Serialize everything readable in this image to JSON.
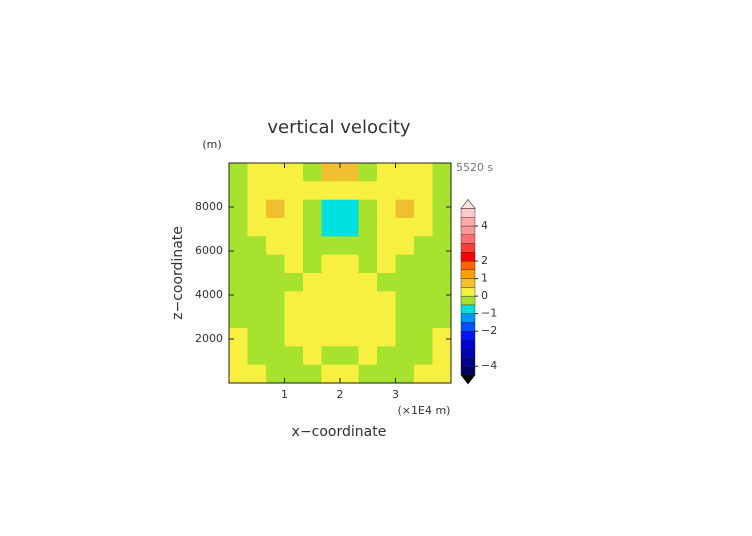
{
  "chart_data": {
    "type": "contour",
    "title": "vertical velocity",
    "yunit": "(m)",
    "time_label": "5520 s",
    "xunit": "(×1E4 m)",
    "xlabel": "x−coordinate",
    "ylabel": "z−coordinate",
    "xlim": [
      0,
      4
    ],
    "ylim": [
      0,
      10000
    ],
    "xticks": [
      1,
      2,
      3
    ],
    "yticks": [
      2000,
      4000,
      6000,
      8000
    ],
    "z": [
      [
        -0.2,
        0.2,
        0.2,
        0.2,
        -0.2,
        0.7,
        0.7,
        -0.2,
        0.2,
        0.2,
        0.2,
        -0.2
      ],
      [
        -0.2,
        0.2,
        0.2,
        0.2,
        0.2,
        0.2,
        0.2,
        0.2,
        0.2,
        0.2,
        0.2,
        -0.2
      ],
      [
        -0.2,
        0.2,
        0.7,
        0.2,
        -0.2,
        -0.7,
        -0.7,
        -0.2,
        0.2,
        0.7,
        0.2,
        -0.2
      ],
      [
        -0.2,
        0.2,
        0.2,
        0.2,
        -0.2,
        -0.7,
        -0.7,
        -0.2,
        0.2,
        0.2,
        0.2,
        -0.2
      ],
      [
        -0.2,
        -0.2,
        0.2,
        0.2,
        -0.2,
        -0.2,
        -0.2,
        -0.2,
        0.2,
        0.2,
        -0.2,
        -0.2
      ],
      [
        -0.2,
        -0.2,
        -0.2,
        0.2,
        -0.2,
        0.2,
        0.2,
        -0.2,
        0.2,
        -0.2,
        -0.2,
        -0.2
      ],
      [
        -0.2,
        -0.2,
        -0.2,
        -0.2,
        0.2,
        0.2,
        0.2,
        0.2,
        -0.2,
        -0.2,
        -0.2,
        -0.2
      ],
      [
        -0.2,
        -0.2,
        -0.2,
        0.2,
        0.2,
        0.2,
        0.2,
        0.2,
        0.2,
        -0.2,
        -0.2,
        -0.2
      ],
      [
        -0.2,
        -0.2,
        -0.2,
        0.2,
        0.2,
        0.2,
        0.2,
        0.2,
        0.2,
        -0.2,
        -0.2,
        -0.2
      ],
      [
        0.2,
        -0.2,
        -0.2,
        0.2,
        0.2,
        0.2,
        0.2,
        0.2,
        0.2,
        -0.2,
        -0.2,
        0.2
      ],
      [
        0.2,
        -0.2,
        -0.2,
        -0.2,
        0.2,
        -0.2,
        -0.2,
        0.2,
        -0.2,
        -0.2,
        -0.2,
        0.2
      ],
      [
        0.2,
        0.2,
        -0.2,
        -0.2,
        -0.2,
        0.2,
        0.2,
        -0.2,
        -0.2,
        -0.2,
        0.2,
        0.2
      ]
    ],
    "levels": [
      -4.5,
      -4,
      -3.5,
      -3,
      -2.5,
      -2,
      -1.5,
      -1,
      -0.5,
      0,
      0.5,
      1,
      1.5,
      2,
      2.5,
      3,
      3.5,
      4,
      4.5,
      5
    ],
    "colors": [
      "#000060",
      "#00008c",
      "#0000b4",
      "#0000dc",
      "#0014ff",
      "#0050ff",
      "#0096ff",
      "#00e0e0",
      "#a6e22e",
      "#f8f040",
      "#f0c030",
      "#ffa000",
      "#ff6400",
      "#ff0000",
      "#ff3c3c",
      "#ff6e6e",
      "#ff9696",
      "#ffaaaa",
      "#ffc8c8"
    ],
    "cticks": [
      {
        "value": -4,
        "label": "−4"
      },
      {
        "value": -2,
        "label": "−2"
      },
      {
        "value": -1,
        "label": "−1"
      },
      0,
      1,
      2,
      4
    ]
  }
}
